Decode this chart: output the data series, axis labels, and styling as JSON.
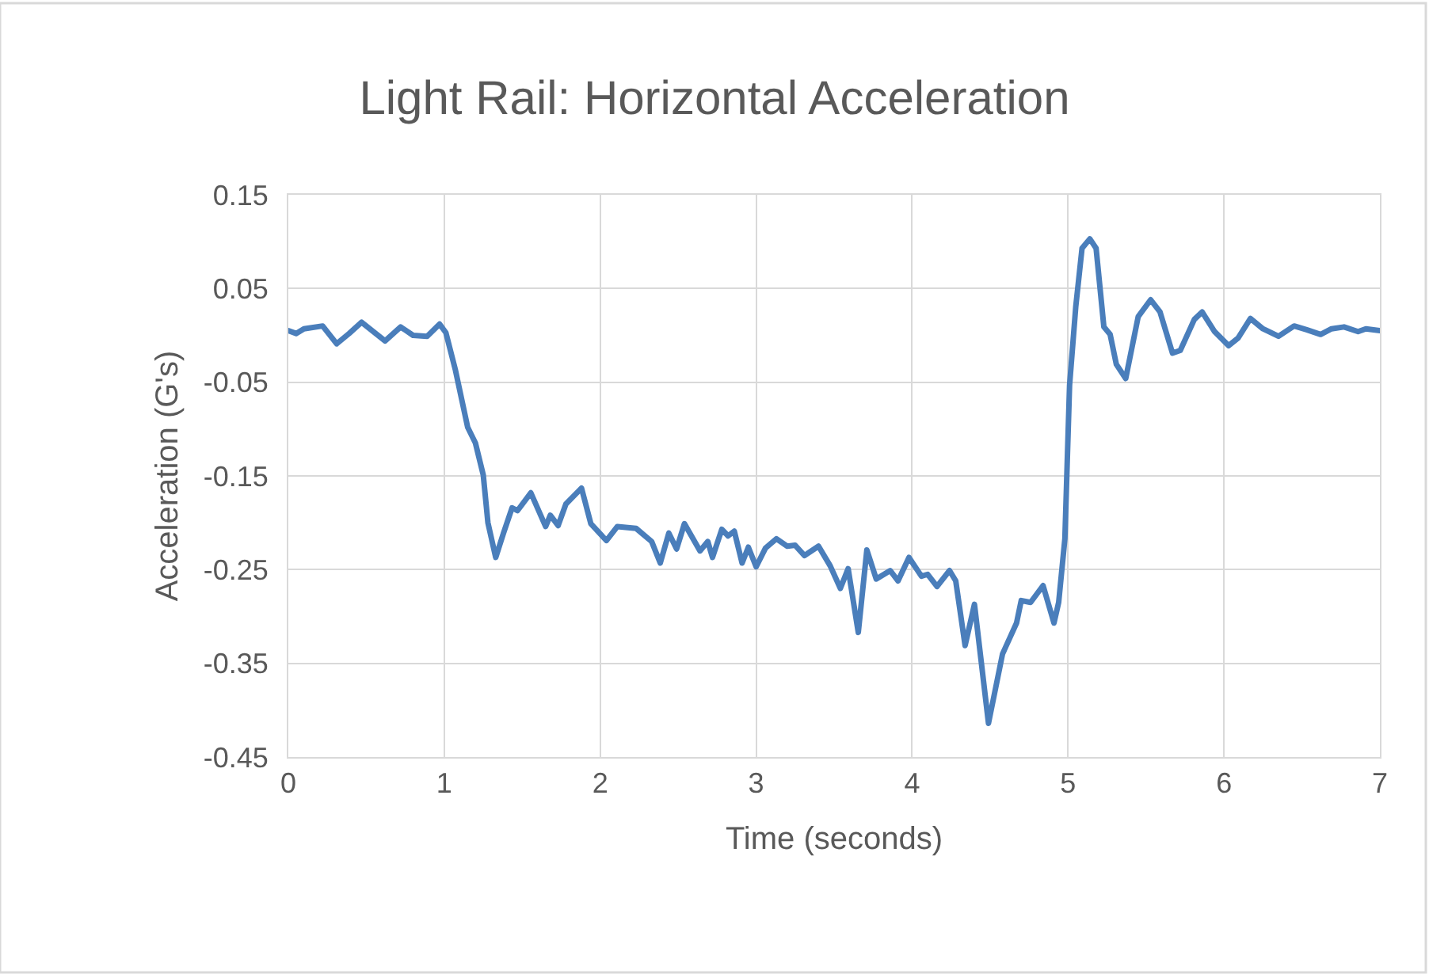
{
  "chart_data": {
    "type": "line",
    "title": "Light Rail: Horizontal Acceleration",
    "xlabel": "Time (seconds)",
    "ylabel": "Acceleration (G's)",
    "x": [
      0,
      0.05,
      0.1,
      0.22,
      0.31,
      0.39,
      0.47,
      0.62,
      0.72,
      0.8,
      0.89,
      0.97,
      1.01,
      1.07,
      1.15,
      1.2,
      1.25,
      1.28,
      1.33,
      1.38,
      1.435,
      1.47,
      1.555,
      1.65,
      1.68,
      1.73,
      1.78,
      1.88,
      1.94,
      2.04,
      2.11,
      2.23,
      2.33,
      2.385,
      2.44,
      2.49,
      2.54,
      2.64,
      2.69,
      2.72,
      2.78,
      2.82,
      2.86,
      2.91,
      2.95,
      3.0,
      3.06,
      3.13,
      3.2,
      3.25,
      3.31,
      3.4,
      3.475,
      3.54,
      3.59,
      3.655,
      3.71,
      3.77,
      3.86,
      3.91,
      3.98,
      4.06,
      4.1,
      4.16,
      4.24,
      4.28,
      4.34,
      4.4,
      4.49,
      4.58,
      4.67,
      4.7,
      4.76,
      4.84,
      4.91,
      4.94,
      4.98,
      5.01,
      5.05,
      5.09,
      5.14,
      5.18,
      5.23,
      5.27,
      5.31,
      5.37,
      5.45,
      5.53,
      5.59,
      5.67,
      5.72,
      5.81,
      5.86,
      5.94,
      6.03,
      6.09,
      6.17,
      6.25,
      6.35,
      6.45,
      6.53,
      6.62,
      6.69,
      6.77,
      6.86,
      6.91,
      7.0
    ],
    "series": [
      {
        "color": "#4a7ebb",
        "values": [
          0.005,
          0.002,
          0.007,
          0.01,
          -0.009,
          0.002,
          0.014,
          -0.006,
          0.009,
          0.0,
          -0.001,
          0.012,
          0.003,
          -0.036,
          -0.098,
          -0.115,
          -0.149,
          -0.2,
          -0.237,
          -0.211,
          -0.184,
          -0.187,
          -0.168,
          -0.204,
          -0.192,
          -0.203,
          -0.18,
          -0.163,
          -0.201,
          -0.219,
          -0.204,
          -0.206,
          -0.22,
          -0.243,
          -0.211,
          -0.228,
          -0.201,
          -0.23,
          -0.22,
          -0.237,
          -0.207,
          -0.214,
          -0.209,
          -0.243,
          -0.226,
          -0.247,
          -0.227,
          -0.217,
          -0.225,
          -0.224,
          -0.235,
          -0.225,
          -0.246,
          -0.27,
          -0.249,
          -0.317,
          -0.229,
          -0.26,
          -0.251,
          -0.262,
          -0.237,
          -0.257,
          -0.255,
          -0.268,
          -0.251,
          -0.262,
          -0.331,
          -0.287,
          -0.414,
          -0.34,
          -0.307,
          -0.283,
          -0.285,
          -0.267,
          -0.307,
          -0.285,
          -0.217,
          -0.053,
          0.031,
          0.093,
          0.103,
          0.093,
          0.009,
          0.001,
          -0.031,
          -0.046,
          0.02,
          0.038,
          0.025,
          -0.019,
          -0.016,
          0.017,
          0.025,
          0.004,
          -0.011,
          -0.003,
          0.018,
          0.007,
          -0.001,
          0.01,
          0.006,
          0.001,
          0.007,
          0.009,
          0.004,
          0.007,
          0.005
        ]
      }
    ],
    "xlim": [
      0,
      7
    ],
    "xticks": [
      0,
      1,
      2,
      3,
      4,
      5,
      6,
      7
    ],
    "ylim": [
      -0.45,
      0.15
    ],
    "yticks": [
      -0.45,
      -0.35,
      -0.25,
      -0.15,
      -0.05,
      0.05,
      0.15
    ],
    "grid": true,
    "marker": "none",
    "line_style": "solid"
  }
}
